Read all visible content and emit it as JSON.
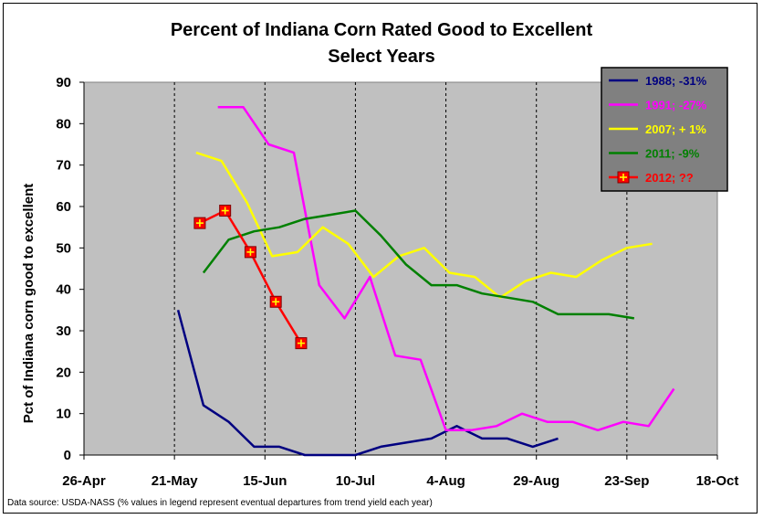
{
  "chart_data": {
    "type": "line",
    "title": "Percent of Indiana Corn Rated Good to Excellent",
    "subtitle": "Select Years",
    "ylabel": "Pct of Indiana corn good to excellent",
    "xlabel": "",
    "ylim": [
      0,
      90
    ],
    "yticks": [
      0,
      10,
      20,
      30,
      40,
      50,
      60,
      70,
      80,
      90
    ],
    "xlim": [
      "26-Apr",
      "18-Oct"
    ],
    "xticks": [
      "26-Apr",
      "21-May",
      "15-Jun",
      "10-Jul",
      "4-Aug",
      "29-Aug",
      "23-Sep",
      "18-Oct"
    ],
    "grid": "vertical",
    "legend": "top-right",
    "plot_background": "#c0c0c0",
    "series": [
      {
        "name": "1988; -31%",
        "color": "#000080",
        "marker": "none",
        "x": [
          "22-May",
          "29-May",
          "5-Jun",
          "12-Jun",
          "19-Jun",
          "26-Jun",
          "3-Jul",
          "10-Jul",
          "17-Jul",
          "24-Jul",
          "31-Jul",
          "7-Aug",
          "14-Aug",
          "21-Aug",
          "28-Aug",
          "4-Sep"
        ],
        "values": [
          35,
          12,
          8,
          2,
          2,
          0,
          0,
          0,
          2,
          3,
          4,
          7,
          4,
          4,
          2,
          4
        ]
      },
      {
        "name": "1991; -27%",
        "color": "#ff00ff",
        "marker": "none",
        "x": [
          "2-Jun",
          "9-Jun",
          "16-Jun",
          "23-Jun",
          "30-Jun",
          "7-Jul",
          "14-Jul",
          "21-Jul",
          "28-Jul",
          "4-Aug",
          "11-Aug",
          "18-Aug",
          "25-Aug",
          "1-Sep",
          "8-Sep",
          "15-Sep",
          "22-Sep",
          "29-Sep",
          "6-Oct"
        ],
        "values": [
          84,
          84,
          75,
          73,
          41,
          33,
          43,
          24,
          23,
          6,
          6,
          7,
          10,
          8,
          8,
          6,
          8,
          7,
          16
        ]
      },
      {
        "name": "2007; + 1%",
        "color": "#ffff00",
        "marker": "none",
        "x": [
          "27-May",
          "3-Jun",
          "10-Jun",
          "17-Jun",
          "24-Jun",
          "1-Jul",
          "8-Jul",
          "15-Jul",
          "22-Jul",
          "29-Jul",
          "5-Aug",
          "12-Aug",
          "19-Aug",
          "26-Aug",
          "2-Sep",
          "9-Sep",
          "16-Sep",
          "23-Sep",
          "30-Sep"
        ],
        "values": [
          73,
          71,
          61,
          48,
          49,
          55,
          51,
          43,
          48,
          50,
          44,
          43,
          38,
          42,
          44,
          43,
          47,
          50,
          51
        ]
      },
      {
        "name": "2011; -9%",
        "color": "#008000",
        "marker": "none",
        "x": [
          "29-May",
          "5-Jun",
          "12-Jun",
          "19-Jun",
          "26-Jun",
          "3-Jul",
          "10-Jul",
          "17-Jul",
          "24-Jul",
          "31-Jul",
          "7-Aug",
          "14-Aug",
          "21-Aug",
          "28-Aug",
          "4-Sep",
          "11-Sep",
          "18-Sep",
          "25-Sep"
        ],
        "values": [
          44,
          52,
          54,
          55,
          57,
          58,
          59,
          53,
          46,
          41,
          41,
          39,
          38,
          37,
          34,
          34,
          34,
          33
        ]
      },
      {
        "name": "2012; ??",
        "color": "#ff0000",
        "marker": "square-cross",
        "x": [
          "28-May",
          "4-Jun",
          "11-Jun",
          "18-Jun",
          "25-Jun"
        ],
        "values": [
          56,
          59,
          49,
          37,
          27
        ]
      }
    ]
  },
  "source_note": "Data source: USDA-NASS (% values in legend represent eventual departures from trend yield each year)"
}
